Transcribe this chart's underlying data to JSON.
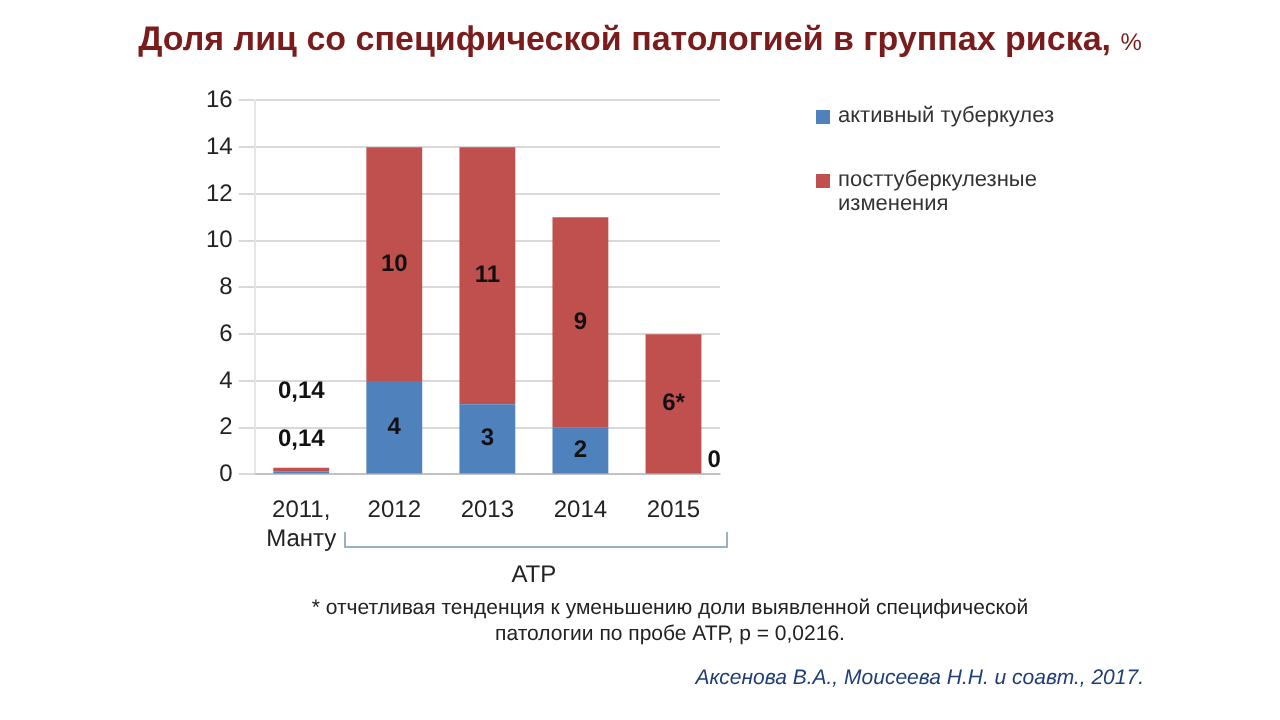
{
  "chart_data": {
    "type": "bar",
    "title": "Доля лиц со специфической патологией в группах риска,",
    "subtitle": "%",
    "categories": [
      "2011,\nМанту",
      "2012",
      "2013",
      "2014",
      "2015"
    ],
    "stacked": true,
    "ylim": [
      0,
      16
    ],
    "yticks": [
      0,
      2,
      4,
      6,
      8,
      10,
      12,
      14,
      16
    ],
    "grid": "y",
    "legend": "top right",
    "series": [
      {
        "name": "активный туберкулез",
        "color": "#4f81bd",
        "values": [
          0.14,
          4,
          3,
          2,
          0
        ],
        "value_labels": [
          "0,14",
          "4",
          "3",
          "2",
          null
        ]
      },
      {
        "name": "посттуберкулезные изменения",
        "color": "#c0504d",
        "values": [
          0.14,
          10,
          11,
          9,
          6
        ],
        "value_labels": [
          "0,14",
          "10",
          "11",
          "9",
          "6*"
        ]
      }
    ],
    "annotations": [
      {
        "text": "0",
        "x": "2015",
        "y": 0
      },
      "АТР",
      "* отчетливая тенденция к уменьшению доли выявленной специфической патологии по пробе АТР, p = 0,0216.",
      "Аксенова В.А., Моисеева Н.Н. и соавт., 2017."
    ]
  }
}
